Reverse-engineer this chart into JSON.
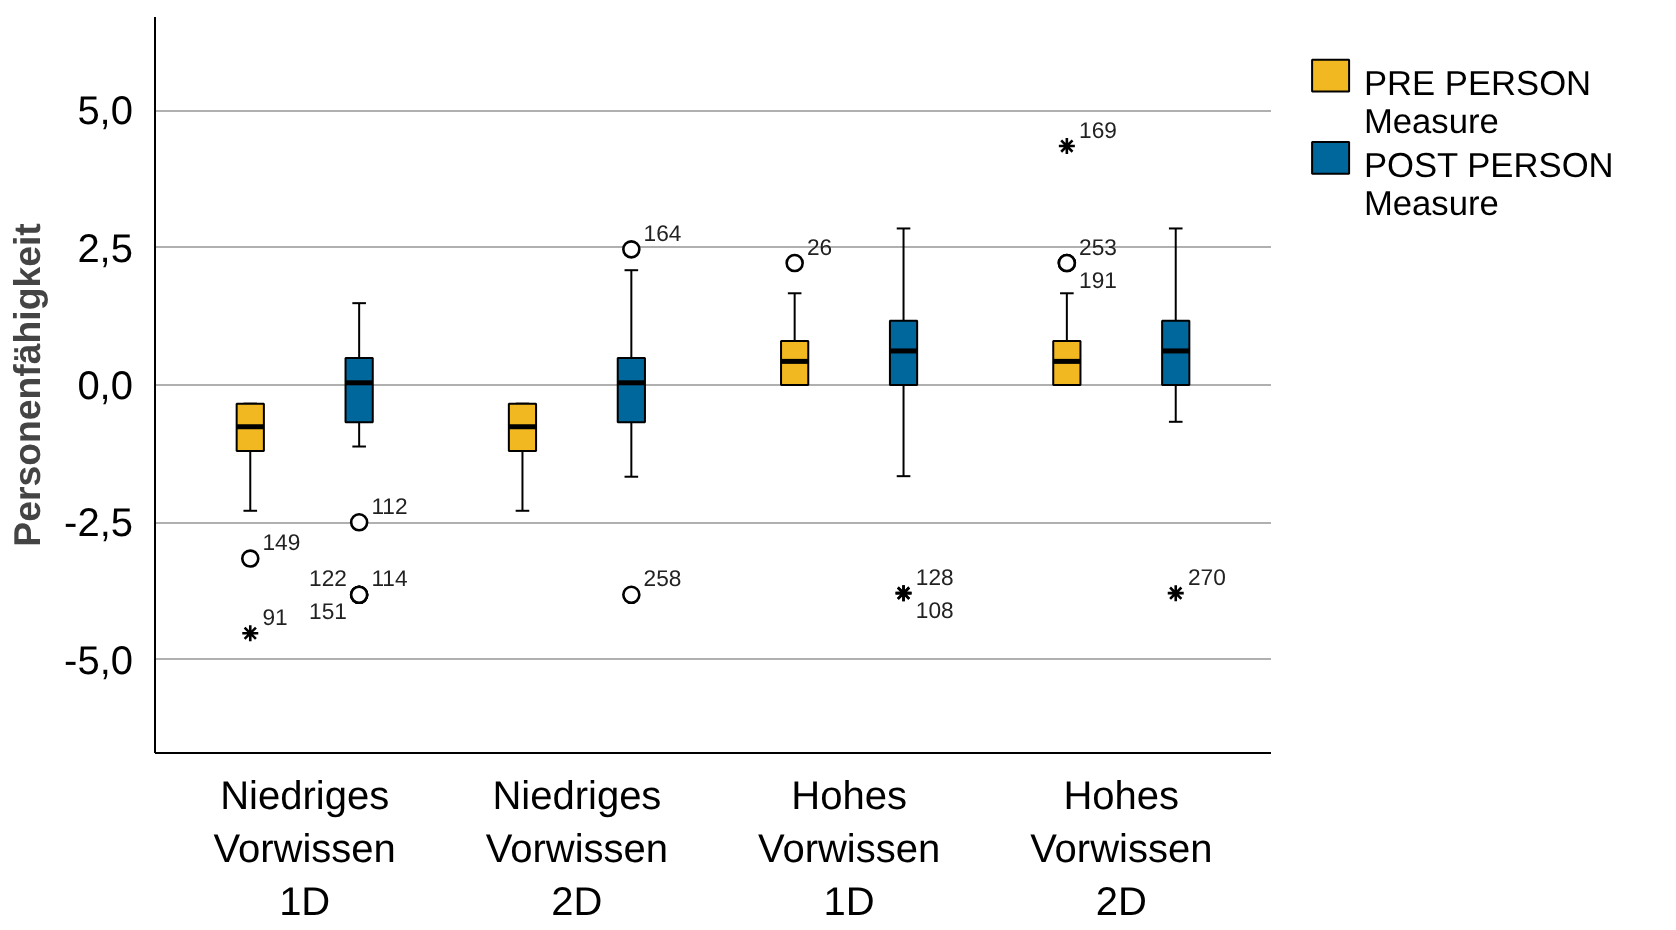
{
  "chart_data": {
    "type": "box",
    "ylabel": "Personenfähigkeit",
    "categories": [
      "Niedriges Vorwissen 1D",
      "Niedriges Vorwissen 2D",
      "Hohes Vorwissen 1D",
      "Hohes Vorwissen 2D"
    ],
    "series": [
      {
        "name": "PRE PERSON Measure",
        "color": "#f2b821",
        "boxes": [
          {
            "low": -2.29,
            "q1": -1.2,
            "median": -0.76,
            "q3": -0.34,
            "high": -0.34,
            "outliers": [
              -3.16,
              -4.52
            ]
          },
          {
            "low": -2.29,
            "q1": -1.2,
            "median": -0.76,
            "q3": -0.34,
            "high": -0.34
          },
          {
            "low": 0.0,
            "q1": 0.0,
            "median": 0.43,
            "q3": 0.8,
            "high": 1.67,
            "outliers": [
              2.22
            ]
          },
          {
            "low": 0.0,
            "q1": 0.0,
            "median": 0.43,
            "q3": 0.8,
            "high": 1.67,
            "outliers": [
              2.22,
              2.22,
              4.35
            ]
          }
        ]
      },
      {
        "name": "POST PERSON Measure",
        "color": "#00679c",
        "boxes": [
          {
            "low": -1.12,
            "q1": -0.68,
            "median": 0.04,
            "q3": 0.49,
            "high": 1.49,
            "outliers": [
              -2.5,
              -3.82,
              -3.82,
              -3.82
            ]
          },
          {
            "low": -1.67,
            "q1": -0.68,
            "median": 0.04,
            "q3": 0.49,
            "high": 2.09,
            "outliers": [
              2.47,
              -3.82
            ]
          },
          {
            "low": -1.66,
            "q1": 0.0,
            "median": 0.62,
            "q3": 1.17,
            "high": 2.85,
            "outliers": [
              -3.79,
              -3.79
            ]
          },
          {
            "low": -0.67,
            "q1": 0.0,
            "median": 0.62,
            "q3": 1.17,
            "high": 2.85,
            "outliers": [
              -3.79
            ]
          }
        ]
      }
    ],
    "annotations": [
      "149",
      "91",
      "112",
      "122",
      "114",
      "151",
      "164",
      "258",
      "26",
      "128",
      "108",
      "253",
      "191",
      "169",
      "270"
    ],
    "ylim": [
      -6.7,
      6.7
    ],
    "yticks": [
      {
        "value": -5,
        "label": "-5,0"
      },
      {
        "value": -2.5,
        "label": "-2,5"
      },
      {
        "value": 0,
        "label": "0,0"
      },
      {
        "value": 2.5,
        "label": "2,5"
      },
      {
        "value": 5,
        "label": "5,0"
      }
    ],
    "grid": "y",
    "legend": "right"
  }
}
